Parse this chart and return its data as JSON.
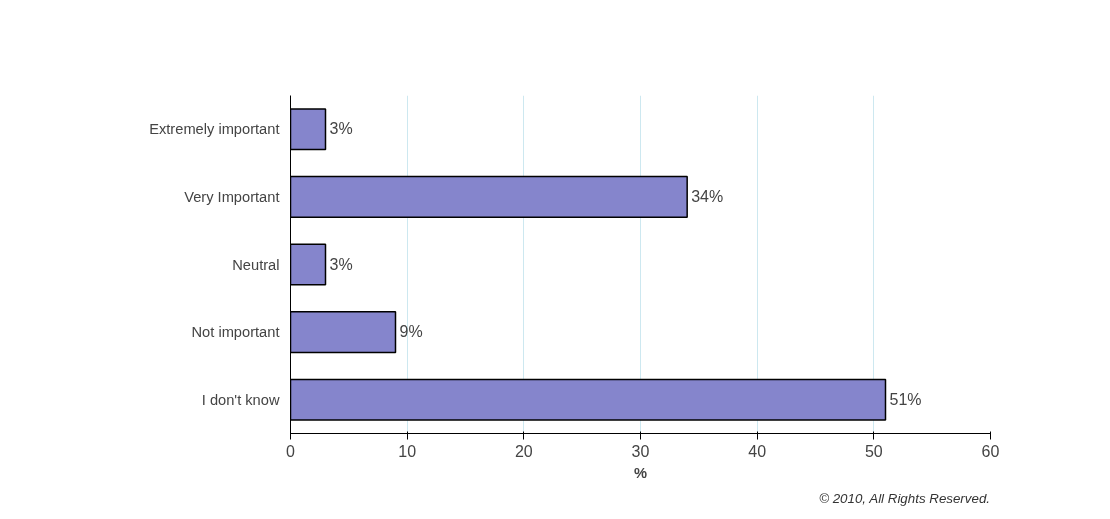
{
  "chart_data": {
    "type": "bar",
    "orientation": "horizontal",
    "categories": [
      "Extremely important",
      "Very Important",
      "Neutral",
      "Not important",
      "I don't know"
    ],
    "values": [
      3,
      34,
      3,
      9,
      51
    ],
    "color": "#8585cc",
    "xlim": [
      0,
      60
    ],
    "xticks": [
      0,
      10,
      20,
      30,
      40,
      50,
      60
    ],
    "xlabel": "%",
    "grid": "x",
    "value_labels": [
      "3%",
      "34%",
      "3%",
      "9%",
      "51%"
    ],
    "annotations": [
      "© 2010, All Rights Reserved."
    ]
  }
}
